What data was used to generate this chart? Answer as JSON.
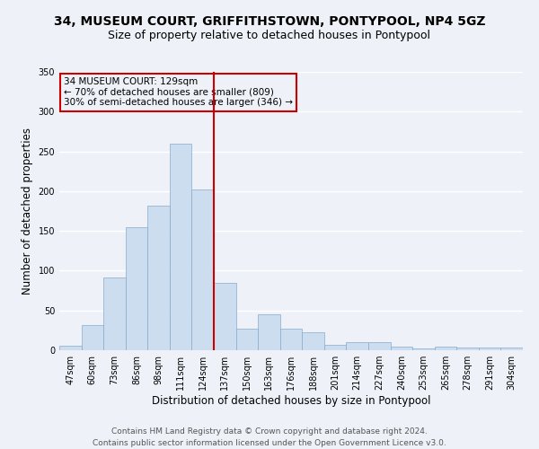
{
  "title": "34, MUSEUM COURT, GRIFFITHSTOWN, PONTYPOOL, NP4 5GZ",
  "subtitle": "Size of property relative to detached houses in Pontypool",
  "xlabel": "Distribution of detached houses by size in Pontypool",
  "ylabel": "Number of detached properties",
  "bar_labels": [
    "47sqm",
    "60sqm",
    "73sqm",
    "86sqm",
    "98sqm",
    "111sqm",
    "124sqm",
    "137sqm",
    "150sqm",
    "163sqm",
    "176sqm",
    "188sqm",
    "201sqm",
    "214sqm",
    "227sqm",
    "240sqm",
    "253sqm",
    "265sqm",
    "278sqm",
    "291sqm",
    "304sqm"
  ],
  "bar_values": [
    6,
    32,
    92,
    155,
    182,
    260,
    202,
    85,
    27,
    45,
    27,
    23,
    7,
    10,
    10,
    5,
    2,
    4,
    3,
    3,
    3
  ],
  "bar_color": "#ccddf0",
  "bar_edge_color": "#88aacc",
  "vline_color": "#cc0000",
  "vline_pos": 6.5,
  "annotation_title": "34 MUSEUM COURT: 129sqm",
  "annotation_line1": "← 70% of detached houses are smaller (809)",
  "annotation_line2": "30% of semi-detached houses are larger (346) →",
  "annotation_box_color": "#cc0000",
  "ylim": [
    0,
    350
  ],
  "yticks": [
    0,
    50,
    100,
    150,
    200,
    250,
    300,
    350
  ],
  "footer1": "Contains HM Land Registry data © Crown copyright and database right 2024.",
  "footer2": "Contains public sector information licensed under the Open Government Licence v3.0.",
  "bg_color": "#eef2f8",
  "grid_color": "#ffffff",
  "title_fontsize": 10,
  "subtitle_fontsize": 9,
  "axis_label_fontsize": 8.5,
  "tick_fontsize": 7,
  "annotation_fontsize": 7.5,
  "footer_fontsize": 6.5
}
